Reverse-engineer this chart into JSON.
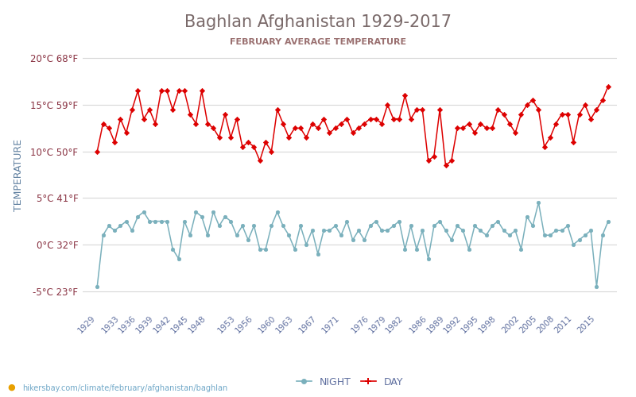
{
  "title": "Baghlan Afghanistan 1929-2017",
  "subtitle": "FEBRUARY AVERAGE TEMPERATURE",
  "ylabel": "TEMPERATURE",
  "bottom_label": "hikersbay.com/climate/february/afghanistan/baghlan",
  "legend_night": "NIGHT",
  "legend_day": "DAY",
  "years": [
    1929,
    1930,
    1931,
    1932,
    1933,
    1934,
    1935,
    1936,
    1937,
    1938,
    1939,
    1940,
    1941,
    1942,
    1943,
    1944,
    1945,
    1946,
    1947,
    1948,
    1949,
    1950,
    1951,
    1952,
    1953,
    1954,
    1955,
    1956,
    1957,
    1958,
    1959,
    1960,
    1961,
    1962,
    1963,
    1964,
    1965,
    1966,
    1967,
    1968,
    1969,
    1970,
    1971,
    1972,
    1973,
    1974,
    1975,
    1976,
    1977,
    1978,
    1979,
    1980,
    1981,
    1982,
    1983,
    1984,
    1985,
    1986,
    1987,
    1988,
    1989,
    1990,
    1991,
    1992,
    1993,
    1994,
    1995,
    1996,
    1997,
    1998,
    1999,
    2000,
    2001,
    2002,
    2003,
    2004,
    2005,
    2006,
    2007,
    2008,
    2009,
    2010,
    2011,
    2012,
    2013,
    2014,
    2015,
    2016,
    2017
  ],
  "day_temps": [
    10.0,
    13.0,
    12.5,
    11.0,
    13.5,
    12.0,
    14.5,
    16.5,
    13.5,
    14.5,
    13.0,
    16.5,
    16.5,
    14.5,
    16.5,
    16.5,
    14.0,
    13.0,
    16.5,
    13.0,
    12.5,
    11.5,
    14.0,
    11.5,
    13.5,
    10.5,
    11.0,
    10.5,
    9.0,
    11.0,
    10.0,
    14.5,
    13.0,
    11.5,
    12.5,
    12.5,
    11.5,
    13.0,
    12.5,
    13.5,
    12.0,
    12.5,
    13.0,
    13.5,
    12.0,
    12.5,
    13.0,
    13.5,
    13.5,
    13.0,
    15.0,
    13.5,
    13.5,
    16.0,
    13.5,
    14.5,
    14.5,
    9.0,
    9.5,
    14.5,
    8.5,
    9.0,
    12.5,
    12.5,
    13.0,
    12.0,
    13.0,
    12.5,
    12.5,
    14.5,
    14.0,
    13.0,
    12.0,
    14.0,
    15.0,
    15.5,
    14.5,
    10.5,
    11.5,
    13.0,
    14.0,
    14.0,
    11.0,
    14.0,
    15.0,
    13.5,
    14.5,
    15.5,
    17.0
  ],
  "night_temps": [
    -4.5,
    1.0,
    2.0,
    1.5,
    2.0,
    2.5,
    1.5,
    3.0,
    3.5,
    2.5,
    2.5,
    2.5,
    2.5,
    -0.5,
    -1.5,
    2.5,
    1.0,
    3.5,
    3.0,
    1.0,
    3.5,
    2.0,
    3.0,
    2.5,
    1.0,
    2.0,
    0.5,
    2.0,
    -0.5,
    -0.5,
    2.0,
    3.5,
    2.0,
    1.0,
    -0.5,
    2.0,
    0.0,
    1.5,
    -1.0,
    1.5,
    1.5,
    2.0,
    1.0,
    2.5,
    0.5,
    1.5,
    0.5,
    2.0,
    2.5,
    1.5,
    1.5,
    2.0,
    2.5,
    -0.5,
    2.0,
    -0.5,
    1.5,
    -1.5,
    2.0,
    2.5,
    1.5,
    0.5,
    2.0,
    1.5,
    -0.5,
    2.0,
    1.5,
    1.0,
    2.0,
    2.5,
    1.5,
    1.0,
    1.5,
    -0.5,
    3.0,
    2.0,
    4.5,
    1.0,
    1.0,
    1.5,
    1.5,
    2.0,
    0.0,
    0.5,
    1.0,
    1.5,
    -4.5,
    1.0,
    2.5
  ],
  "day_color": "#dd0000",
  "night_color": "#7ab0bc",
  "bg_color": "#ffffff",
  "grid_color": "#d8d8d8",
  "title_color": "#7a6a6a",
  "subtitle_color": "#9a7070",
  "ytick_label_color": "#883040",
  "ylabel_color": "#6080a0",
  "xtick_label_color": "#6070a0",
  "ylim": [
    -7,
    22
  ],
  "yticks_c": [
    -5,
    0,
    5,
    10,
    15,
    20
  ],
  "yticks_f": [
    23,
    32,
    41,
    50,
    59,
    68
  ],
  "xtick_years": [
    1929,
    1933,
    1936,
    1939,
    1942,
    1945,
    1948,
    1953,
    1956,
    1960,
    1963,
    1967,
    1971,
    1976,
    1979,
    1982,
    1986,
    1989,
    1992,
    1995,
    1998,
    2002,
    2005,
    2008,
    2011,
    2015
  ]
}
